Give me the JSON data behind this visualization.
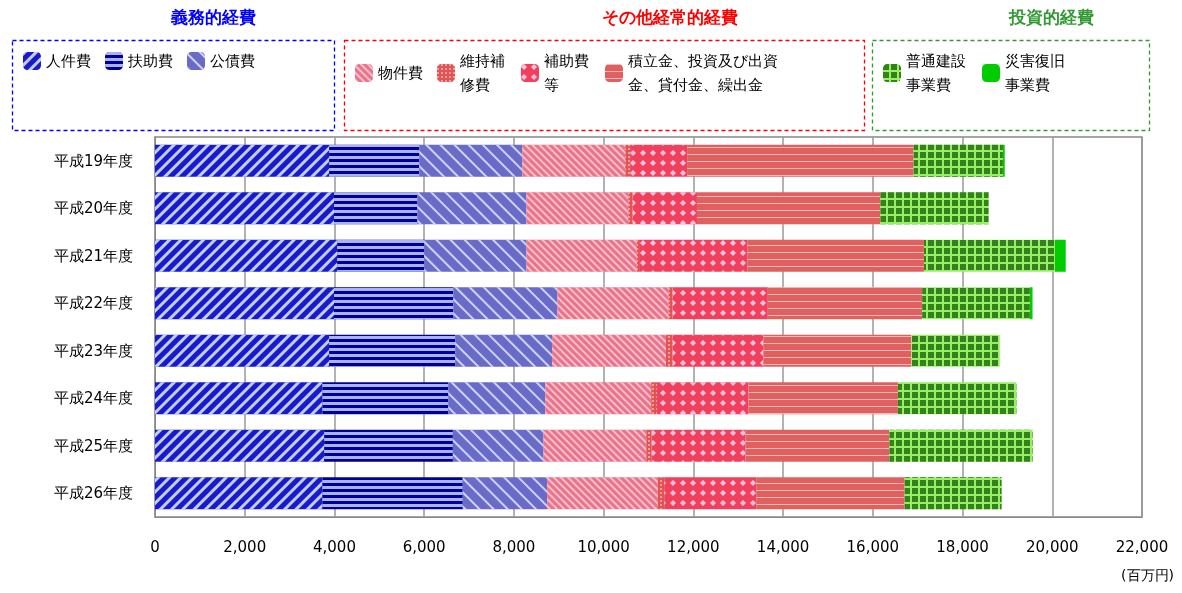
{
  "chart_data": {
    "type": "bar",
    "orientation": "horizontal",
    "stacked": true,
    "categories": [
      "平成19年度",
      "平成20年度",
      "平成21年度",
      "平成22年度",
      "平成23年度",
      "平成24年度",
      "平成25年度",
      "平成26年度"
    ],
    "series": [
      {
        "name": "人件費",
        "color": "#1a1acc",
        "values": [
          3880,
          3990,
          4060,
          3990,
          3880,
          3730,
          3770,
          3730
        ]
      },
      {
        "name": "扶助費",
        "color": "#000099",
        "values": [
          2010,
          1860,
          1940,
          2660,
          2810,
          2810,
          2870,
          3130
        ]
      },
      {
        "name": "公債費",
        "color": "#6a6ac8",
        "values": [
          2300,
          2430,
          2280,
          2320,
          2160,
          2160,
          2020,
          1880
        ]
      },
      {
        "name": "物件費",
        "color": "#e8748c",
        "values": [
          2290,
          2270,
          2460,
          2480,
          2540,
          2360,
          2290,
          2470
        ]
      },
      {
        "name": "維持補修費",
        "color": "#e05454",
        "values": [
          110,
          100,
          50,
          90,
          150,
          130,
          120,
          140
        ]
      },
      {
        "name": "補助費等",
        "color": "#f0405c",
        "values": [
          1270,
          1430,
          2410,
          2120,
          2020,
          2040,
          2090,
          2050
        ]
      },
      {
        "name": "積立金、投資及び出資金、貸付金、繰出金",
        "color": "#e06060",
        "values": [
          5050,
          4090,
          3940,
          3440,
          3300,
          3330,
          3210,
          3310
        ]
      },
      {
        "name": "普通建設事業費",
        "color": "#99ee66",
        "values": [
          1990,
          2410,
          2920,
          2400,
          1970,
          2640,
          3190,
          2160
        ]
      },
      {
        "name": "災害復旧事業費",
        "color": "#00cc00",
        "values": [
          40,
          0,
          240,
          60,
          0,
          0,
          0,
          0
        ]
      }
    ],
    "xlim": [
      0,
      22000
    ],
    "xticks": [
      0,
      {
        "value": 2000,
        "label": "2,000"
      },
      {
        "value": 4000,
        "label": "4,000"
      },
      {
        "value": 6000,
        "label": "6,000"
      },
      {
        "value": 8000,
        "label": "8,000"
      },
      {
        "value": 10000,
        "label": "10,000"
      },
      {
        "value": 12000,
        "label": "12,000"
      },
      {
        "value": 14000,
        "label": "14,000"
      },
      {
        "value": 16000,
        "label": "16,000"
      },
      {
        "value": 18000,
        "label": "18,000"
      },
      {
        "value": 20000,
        "label": "20,000"
      },
      {
        "value": 22000,
        "label": "22,000"
      }
    ],
    "xlabel": "(百万円)",
    "annotations": [
      "義務的経費",
      "その他経常的経費",
      "投資的経費"
    ],
    "grid": "x",
    "legend": "top"
  }
}
